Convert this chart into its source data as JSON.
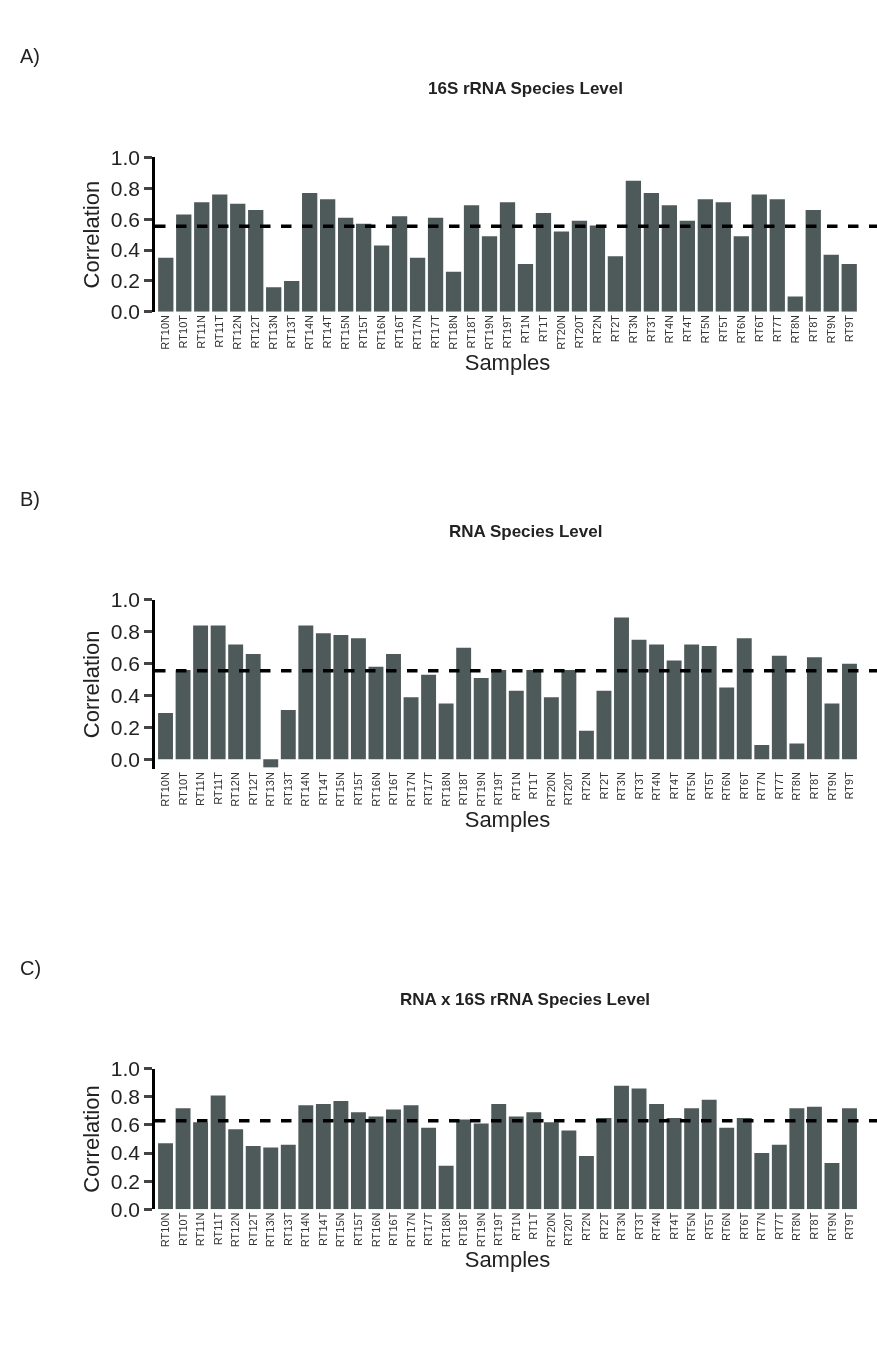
{
  "chart_data": [
    {
      "type": "bar",
      "title": "16S rRNA Species Level",
      "annotations": [
        "A)"
      ],
      "xlabel": "Samples",
      "ylabel": "Correlation",
      "color": "#4d5a59",
      "categories": [
        "RT10N",
        "RT10T",
        "RT11N",
        "RT11T",
        "RT12N",
        "RT12T",
        "RT13N",
        "RT13T",
        "RT14N",
        "RT14T",
        "RT15N",
        "RT15T",
        "RT16N",
        "RT16T",
        "RT17N",
        "RT17T",
        "RT18N",
        "RT18T",
        "RT19N",
        "RT19T",
        "RT1N",
        "RT1T",
        "RT20N",
        "RT20T",
        "RT2N",
        "RT2T",
        "RT3N",
        "RT3T",
        "RT4N",
        "RT4T",
        "RT5N",
        "RT5T",
        "RT6N",
        "RT6T",
        "RT7T",
        "RT8N",
        "RT8T",
        "RT9N",
        "RT9T"
      ],
      "values": [
        0.35,
        0.63,
        0.71,
        0.76,
        0.7,
        0.66,
        0.16,
        0.2,
        0.77,
        0.73,
        0.61,
        0.57,
        0.43,
        0.62,
        0.35,
        0.61,
        0.26,
        0.69,
        0.49,
        0.71,
        0.31,
        0.64,
        0.52,
        0.59,
        0.56,
        0.36,
        0.85,
        0.77,
        0.69,
        0.59,
        0.73,
        0.71,
        0.49,
        0.76,
        0.73,
        0.1,
        0.66,
        0.37,
        0.31
      ],
      "ylim": [
        0,
        1.0
      ],
      "yticks": [
        {
          "value": 0,
          "label": "0.0"
        },
        {
          "value": 0.2,
          "label": "0.2"
        },
        {
          "value": 0.4,
          "label": "0.4"
        },
        {
          "value": 0.6,
          "label": "0.6"
        },
        {
          "value": 0.8,
          "label": "0.8"
        },
        {
          "value": 1.0,
          "label": "1.0"
        }
      ],
      "ref_lines": [
        {
          "axis": "y",
          "value": 0.555,
          "color": "#000000",
          "line_style": "dashed"
        }
      ]
    },
    {
      "type": "bar",
      "title": "RNA Species Level",
      "annotations": [
        "B)"
      ],
      "xlabel": "Samples",
      "ylabel": "Correlation",
      "color": "#4d5a59",
      "categories": [
        "RT10N",
        "RT10T",
        "RT11N",
        "RT11T",
        "RT12N",
        "RT12T",
        "RT13N",
        "RT13T",
        "RT14N",
        "RT14T",
        "RT15N",
        "RT15T",
        "RT16N",
        "RT16T",
        "RT17N",
        "RT17T",
        "RT18N",
        "RT18T",
        "RT19N",
        "RT19T",
        "RT1N",
        "RT1T",
        "RT20N",
        "RT20T",
        "RT2N",
        "RT2T",
        "RT3N",
        "RT3T",
        "RT4N",
        "RT4T",
        "RT5N",
        "RT5T",
        "RT6N",
        "RT6T",
        "RT7N",
        "RT7T",
        "RT8N",
        "RT8T",
        "RT9N",
        "RT9T"
      ],
      "values": [
        0.29,
        0.56,
        0.84,
        0.84,
        0.72,
        0.66,
        -0.05,
        0.31,
        0.84,
        0.79,
        0.78,
        0.76,
        0.58,
        0.66,
        0.39,
        0.53,
        0.35,
        0.7,
        0.51,
        0.56,
        0.43,
        0.56,
        0.39,
        0.56,
        0.18,
        0.43,
        0.89,
        0.75,
        0.72,
        0.62,
        0.72,
        0.71,
        0.45,
        0.76,
        0.09,
        0.65,
        0.1,
        0.64,
        0.35,
        0.6
      ],
      "ylim": [
        -0.06,
        1.0
      ],
      "yticks": [
        {
          "value": 0,
          "label": "0.0"
        },
        {
          "value": 0.2,
          "label": "0.2"
        },
        {
          "value": 0.4,
          "label": "0.4"
        },
        {
          "value": 0.6,
          "label": "0.6"
        },
        {
          "value": 0.8,
          "label": "0.8"
        },
        {
          "value": 1.0,
          "label": "1.0"
        }
      ],
      "ref_lines": [
        {
          "axis": "y",
          "value": 0.555,
          "color": "#000000",
          "line_style": "dashed"
        }
      ]
    },
    {
      "type": "bar",
      "title": "RNA x 16S rRNA Species Level",
      "annotations": [
        "C)"
      ],
      "xlabel": "Samples",
      "ylabel": "Correlation",
      "color": "#4d5a59",
      "categories": [
        "RT10N",
        "RT10T",
        "RT11N",
        "RT11T",
        "RT12N",
        "RT12T",
        "RT13N",
        "RT13T",
        "RT14N",
        "RT14T",
        "RT15N",
        "RT15T",
        "RT16N",
        "RT16T",
        "RT17N",
        "RT17T",
        "RT18N",
        "RT18T",
        "RT19N",
        "RT19T",
        "RT1N",
        "RT1T",
        "RT20N",
        "RT20T",
        "RT2N",
        "RT2T",
        "RT3N",
        "RT3T",
        "RT4N",
        "RT4T",
        "RT5N",
        "RT5T",
        "RT6N",
        "RT6T",
        "RT7N",
        "RT7T",
        "RT8N",
        "RT8T",
        "RT9N",
        "RT9T"
      ],
      "values": [
        0.47,
        0.72,
        0.62,
        0.81,
        0.57,
        0.45,
        0.44,
        0.46,
        0.74,
        0.75,
        0.77,
        0.69,
        0.66,
        0.71,
        0.74,
        0.58,
        0.31,
        0.64,
        0.61,
        0.75,
        0.66,
        0.69,
        0.62,
        0.56,
        0.38,
        0.65,
        0.88,
        0.86,
        0.75,
        0.65,
        0.72,
        0.78,
        0.58,
        0.65,
        0.4,
        0.46,
        0.72,
        0.73,
        0.33,
        0.72
      ],
      "ylim": [
        0,
        1.0
      ],
      "yticks": [
        {
          "value": 0,
          "label": "0.0"
        },
        {
          "value": 0.2,
          "label": "0.2"
        },
        {
          "value": 0.4,
          "label": "0.4"
        },
        {
          "value": 0.6,
          "label": "0.6"
        },
        {
          "value": 0.8,
          "label": "0.8"
        },
        {
          "value": 1.0,
          "label": "1.0"
        }
      ],
      "ref_lines": [
        {
          "axis": "y",
          "value": 0.63,
          "color": "#000000",
          "line_style": "dashed"
        }
      ]
    }
  ]
}
